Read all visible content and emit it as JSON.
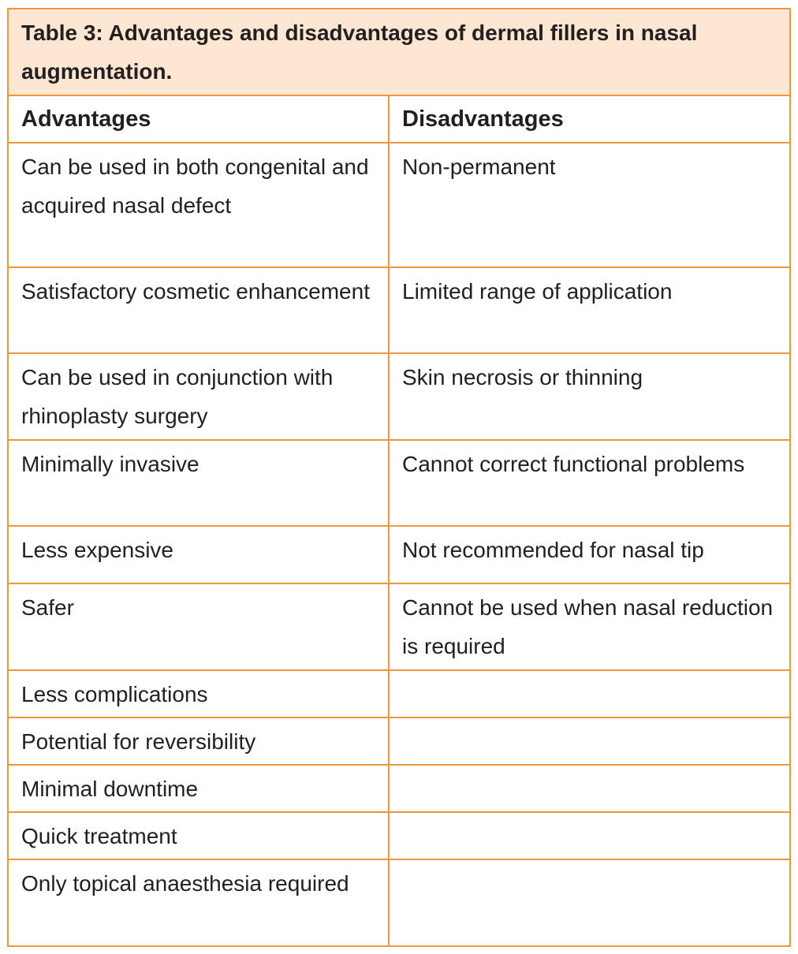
{
  "table": {
    "caption": "Table 3: Advantages and disadvantages of dermal fillers in nasal augmentation.",
    "headers": [
      "Advantages",
      "Disadvantages"
    ],
    "rows": [
      [
        "Can be used in both congenital and acquired nasal defect",
        "Non-permanent"
      ],
      [
        "Satisfactory cosmetic enhancement",
        "Limited range of application"
      ],
      [
        "Can be used in conjunction with rhinoplasty surgery",
        "Skin necrosis or thinning"
      ],
      [
        "Minimally invasive",
        "Cannot correct functional problems"
      ],
      [
        "Less expensive",
        "Not recommended for nasal tip"
      ],
      [
        "Safer",
        "Cannot be used when nasal reduction is required"
      ],
      [
        "Less complications",
        ""
      ],
      [
        "Potential for reversibility",
        ""
      ],
      [
        "Minimal downtime",
        ""
      ],
      [
        "Quick treatment",
        ""
      ],
      [
        "Only topical anaesthesia required",
        ""
      ]
    ]
  },
  "colors": {
    "border": "#f0963c",
    "caption_bg": "#fde6d2",
    "text": "#231f20"
  }
}
